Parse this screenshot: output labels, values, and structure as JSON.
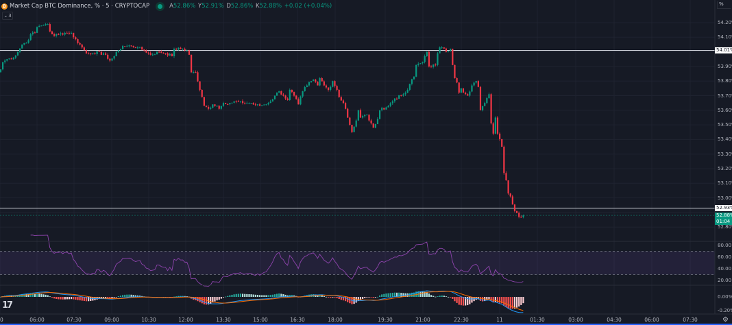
{
  "header": {
    "symbol_icon": "bitcoin-coin-icon",
    "title": "Market Cap BTC Dominance, % · 5 · CRYPTOCAP",
    "status_icon": "market-open-dot-icon",
    "ohlc": [
      {
        "key": "A",
        "value": "52.86%"
      },
      {
        "key": "Y",
        "value": "52.91%"
      },
      {
        "key": "D",
        "value": "52.86%"
      },
      {
        "key": "K",
        "value": "52.88%"
      }
    ],
    "change": "+0.02 (+0.04%)",
    "indicators_toggle": "3"
  },
  "scale_mode": "%",
  "colors": {
    "background": "#161a25",
    "up": "#089981",
    "down": "#f23645",
    "rsi": "#8e44ad",
    "macd": "#2196f3",
    "signal": "#ff6d00"
  },
  "price_axis": {
    "ticks": [
      "54.20%",
      "54.10%",
      "53.90%",
      "53.80%",
      "53.70%",
      "53.60%",
      "53.50%",
      "53.40%",
      "53.30%",
      "53.20%",
      "53.10%",
      "53.00%",
      "52.80%"
    ],
    "horizontal_levels": [
      "54.01%",
      "52.93%"
    ],
    "last_price": "52.88%",
    "countdown": "01:04"
  },
  "rsi_axis": {
    "ticks": [
      "80.00",
      "60.00",
      "40.00",
      "20.00"
    ]
  },
  "macd_axis": {
    "ticks": [
      "0.00%",
      "-0.20%"
    ]
  },
  "time_axis": {
    "ticks": [
      "30",
      "06:00",
      "07:30",
      "09:00",
      "10:30",
      "12:00",
      "13:30",
      "15:00",
      "16:30",
      "18:00",
      "19:30",
      "21:00",
      "22:30",
      "11",
      "01:30",
      "03:00",
      "04:30",
      "06:00",
      "07:30"
    ]
  },
  "logo": "TradingView",
  "chart_data": {
    "type": "candlestick",
    "interval_minutes": 5,
    "ylim": [
      52.78,
      54.22
    ],
    "horizontal_lines": [
      54.01,
      52.93
    ],
    "last": 52.88,
    "close_path": [
      [
        "04:35",
        53.88
      ],
      [
        "04:40",
        53.93
      ],
      [
        "04:50",
        53.95
      ],
      [
        "05:05",
        53.96
      ],
      [
        "05:15",
        54.0
      ],
      [
        "05:25",
        54.05
      ],
      [
        "05:40",
        54.08
      ],
      [
        "05:45",
        54.12
      ],
      [
        "05:55",
        54.13
      ],
      [
        "06:00",
        54.17
      ],
      [
        "06:10",
        54.18
      ],
      [
        "06:20",
        54.19
      ],
      [
        "06:25",
        54.19
      ],
      [
        "06:30",
        54.14
      ],
      [
        "06:40",
        54.11
      ],
      [
        "06:50",
        54.12
      ],
      [
        "07:05",
        54.13
      ],
      [
        "07:20",
        54.13
      ],
      [
        "07:25",
        54.1
      ],
      [
        "07:40",
        54.05
      ],
      [
        "07:45",
        54.03
      ],
      [
        "07:55",
        53.99
      ],
      [
        "08:10",
        53.99
      ],
      [
        "08:25",
        54.0
      ],
      [
        "08:30",
        53.98
      ],
      [
        "08:40",
        53.98
      ],
      [
        "08:50",
        53.94
      ],
      [
        "09:00",
        53.97
      ],
      [
        "09:10",
        54.01
      ],
      [
        "09:20",
        54.04
      ],
      [
        "09:40",
        54.04
      ],
      [
        "09:55",
        54.03
      ],
      [
        "10:10",
        54.01
      ],
      [
        "10:25",
        53.98
      ],
      [
        "10:45",
        54.0
      ],
      [
        "11:00",
        53.99
      ],
      [
        "11:15",
        53.97
      ],
      [
        "11:20",
        54.02
      ],
      [
        "11:40",
        54.02
      ],
      [
        "11:50",
        54.01
      ],
      [
        "11:55",
        53.98
      ],
      [
        "12:00",
        53.86
      ],
      [
        "12:10",
        53.86
      ],
      [
        "12:20",
        53.74
      ],
      [
        "12:30",
        53.63
      ],
      [
        "12:40",
        53.61
      ],
      [
        "12:50",
        53.64
      ],
      [
        "13:00",
        53.63
      ],
      [
        "13:05",
        53.61
      ],
      [
        "13:15",
        53.65
      ],
      [
        "13:30",
        53.65
      ],
      [
        "13:45",
        53.66
      ],
      [
        "14:00",
        53.65
      ],
      [
        "14:20",
        53.65
      ],
      [
        "14:25",
        53.64
      ],
      [
        "14:40",
        53.63
      ],
      [
        "15:00",
        53.65
      ],
      [
        "15:05",
        53.66
      ],
      [
        "15:15",
        53.7
      ],
      [
        "15:25",
        53.73
      ],
      [
        "15:35",
        53.7
      ],
      [
        "15:45",
        53.67
      ],
      [
        "15:50",
        53.74
      ],
      [
        "16:00",
        53.7
      ],
      [
        "16:10",
        53.64
      ],
      [
        "16:20",
        53.73
      ],
      [
        "16:30",
        53.77
      ],
      [
        "16:40",
        53.8
      ],
      [
        "16:45",
        53.81
      ],
      [
        "16:55",
        53.77
      ],
      [
        "17:00",
        53.82
      ],
      [
        "17:10",
        53.77
      ],
      [
        "17:20",
        53.74
      ],
      [
        "17:30",
        53.8
      ],
      [
        "17:40",
        53.74
      ],
      [
        "17:45",
        53.69
      ],
      [
        "17:55",
        53.65
      ],
      [
        "18:00",
        53.61
      ],
      [
        "18:10",
        53.5
      ],
      [
        "18:15",
        53.45
      ],
      [
        "18:25",
        53.53
      ],
      [
        "18:30",
        53.6
      ],
      [
        "18:35",
        53.55
      ],
      [
        "18:50",
        53.57
      ],
      [
        "18:55",
        53.53
      ],
      [
        "19:00",
        53.51
      ],
      [
        "19:05",
        53.48
      ],
      [
        "19:15",
        53.54
      ],
      [
        "19:20",
        53.6
      ],
      [
        "19:40",
        53.63
      ],
      [
        "19:55",
        53.68
      ],
      [
        "20:10",
        53.7
      ],
      [
        "20:20",
        53.72
      ],
      [
        "20:25",
        53.74
      ],
      [
        "20:30",
        53.78
      ],
      [
        "20:40",
        53.83
      ],
      [
        "20:45",
        53.91
      ],
      [
        "21:00",
        53.93
      ],
      [
        "21:05",
        53.97
      ],
      [
        "21:10",
        54.0
      ],
      [
        "21:15",
        53.9
      ],
      [
        "21:30",
        53.91
      ],
      [
        "21:35",
        53.99
      ],
      [
        "21:40",
        54.03
      ],
      [
        "21:45",
        54.03
      ],
      [
        "21:55",
        54.0
      ],
      [
        "22:05",
        54.02
      ],
      [
        "22:10",
        53.91
      ],
      [
        "22:15",
        53.82
      ],
      [
        "22:20",
        53.79
      ],
      [
        "22:25",
        53.72
      ],
      [
        "22:30",
        53.75
      ],
      [
        "22:40",
        53.71
      ],
      [
        "22:45",
        53.7
      ],
      [
        "22:55",
        53.77
      ],
      [
        "23:05",
        53.8
      ],
      [
        "23:10",
        53.76
      ],
      [
        "23:15",
        53.6
      ],
      [
        "23:25",
        53.65
      ],
      [
        "23:35",
        53.71
      ],
      [
        "23:40",
        53.51
      ],
      [
        "23:45",
        53.44
      ],
      [
        "23:50",
        53.55
      ],
      [
        "23:55",
        53.44
      ],
      [
        "00:05",
        53.35
      ],
      [
        "00:10",
        53.17
      ],
      [
        "00:15",
        53.12
      ],
      [
        "00:20",
        53.03
      ],
      [
        "00:25",
        53.01
      ],
      [
        "00:35",
        52.91
      ],
      [
        "00:45",
        52.87
      ],
      [
        "00:55",
        52.88
      ]
    ],
    "rsi": {
      "upper_band": 70,
      "lower_band": 30,
      "ylim": [
        15,
        85
      ]
    },
    "macd": {
      "ylim": [
        -0.28,
        0.12
      ]
    }
  }
}
